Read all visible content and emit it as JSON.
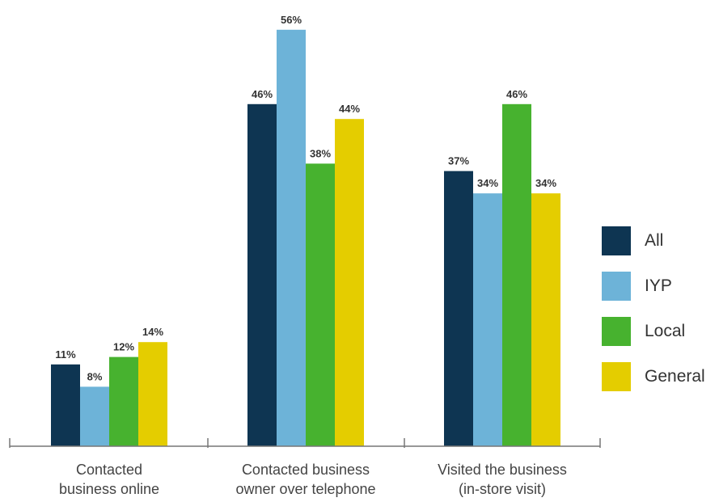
{
  "chart_data": {
    "type": "bar",
    "categories": [
      [
        "Contacted",
        "business online"
      ],
      [
        "Contacted business",
        "owner over telephone"
      ],
      [
        "Visited the business",
        "(in-store visit)"
      ]
    ],
    "series": [
      {
        "name": "All",
        "color": "#0e3552",
        "values": [
          11,
          46,
          37
        ]
      },
      {
        "name": "IYP",
        "color": "#6db3d8",
        "values": [
          8,
          56,
          34
        ]
      },
      {
        "name": "Local",
        "color": "#47b22f",
        "values": [
          12,
          38,
          46
        ]
      },
      {
        "name": "General",
        "color": "#e4cd00",
        "values": [
          14,
          44,
          34
        ]
      }
    ],
    "value_labels": [
      [
        "11%",
        "46%",
        "37%"
      ],
      [
        "8%",
        "56%",
        "34%"
      ],
      [
        "12%",
        "38%",
        "46%"
      ],
      [
        "14%",
        "44%",
        "34%"
      ]
    ],
    "ylim": [
      0,
      56
    ],
    "legend_position": "right",
    "grid": false,
    "title": "",
    "xlabel": "",
    "ylabel": ""
  }
}
